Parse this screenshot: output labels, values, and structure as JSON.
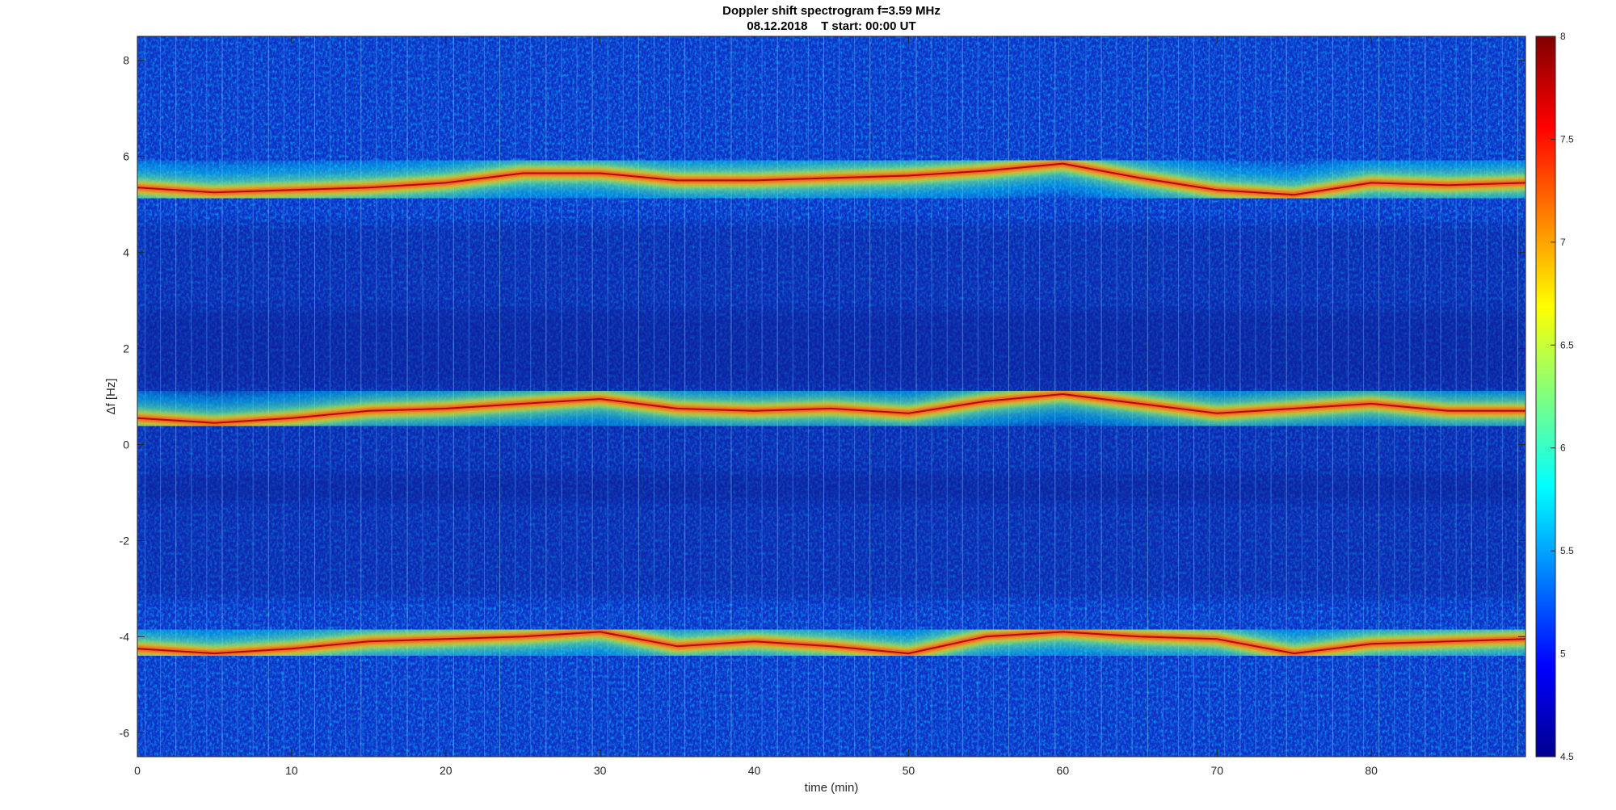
{
  "chart_data": {
    "type": "heatmap",
    "title": "Doppler shift spectrogram f=3.59 MHz",
    "subtitle": "08.12.2018    T start: 00:00 UT",
    "xlabel": "time (min)",
    "ylabel": "Δf [Hz]",
    "xlim": [
      0,
      90
    ],
    "ylim": [
      -6.5,
      8.5
    ],
    "xticks": [
      "0",
      "10",
      "20",
      "30",
      "40",
      "50",
      "60",
      "70",
      "80"
    ],
    "yticks": [
      "-6",
      "-4",
      "-2",
      "0",
      "2",
      "4",
      "6",
      "8"
    ],
    "colorbar": {
      "colormap": "jet",
      "range": [
        4.5,
        8
      ],
      "ticks": [
        "4.5",
        "5",
        "5.5",
        "6",
        "6.5",
        "7",
        "7.5",
        "8"
      ]
    },
    "grid": false,
    "traces": [
      {
        "t": [
          0,
          5,
          10,
          15,
          20,
          25,
          30,
          35,
          40,
          45,
          50,
          55,
          60,
          65,
          70,
          75,
          80,
          85,
          90
        ],
        "df": [
          5.35,
          5.25,
          5.3,
          5.35,
          5.45,
          5.65,
          5.65,
          5.5,
          5.5,
          5.55,
          5.6,
          5.7,
          5.85,
          5.55,
          5.3,
          5.2,
          5.45,
          5.4,
          5.45
        ]
      },
      {
        "t": [
          0,
          5,
          10,
          15,
          20,
          25,
          30,
          35,
          40,
          45,
          50,
          55,
          60,
          65,
          70,
          75,
          80,
          85,
          90
        ],
        "df": [
          0.55,
          0.45,
          0.55,
          0.7,
          0.75,
          0.85,
          0.95,
          0.75,
          0.7,
          0.75,
          0.65,
          0.9,
          1.05,
          0.85,
          0.65,
          0.75,
          0.85,
          0.7,
          0.7
        ]
      },
      {
        "t": [
          0,
          5,
          10,
          15,
          20,
          25,
          30,
          35,
          40,
          45,
          50,
          55,
          60,
          65,
          70,
          75,
          80,
          85,
          90
        ],
        "df": [
          -4.25,
          -4.35,
          -4.25,
          -4.1,
          -4.05,
          -4.0,
          -3.9,
          -4.2,
          -4.1,
          -4.2,
          -4.35,
          -4.0,
          -3.9,
          -4.0,
          -4.05,
          -4.35,
          -4.15,
          -4.1,
          -4.05
        ]
      }
    ]
  }
}
